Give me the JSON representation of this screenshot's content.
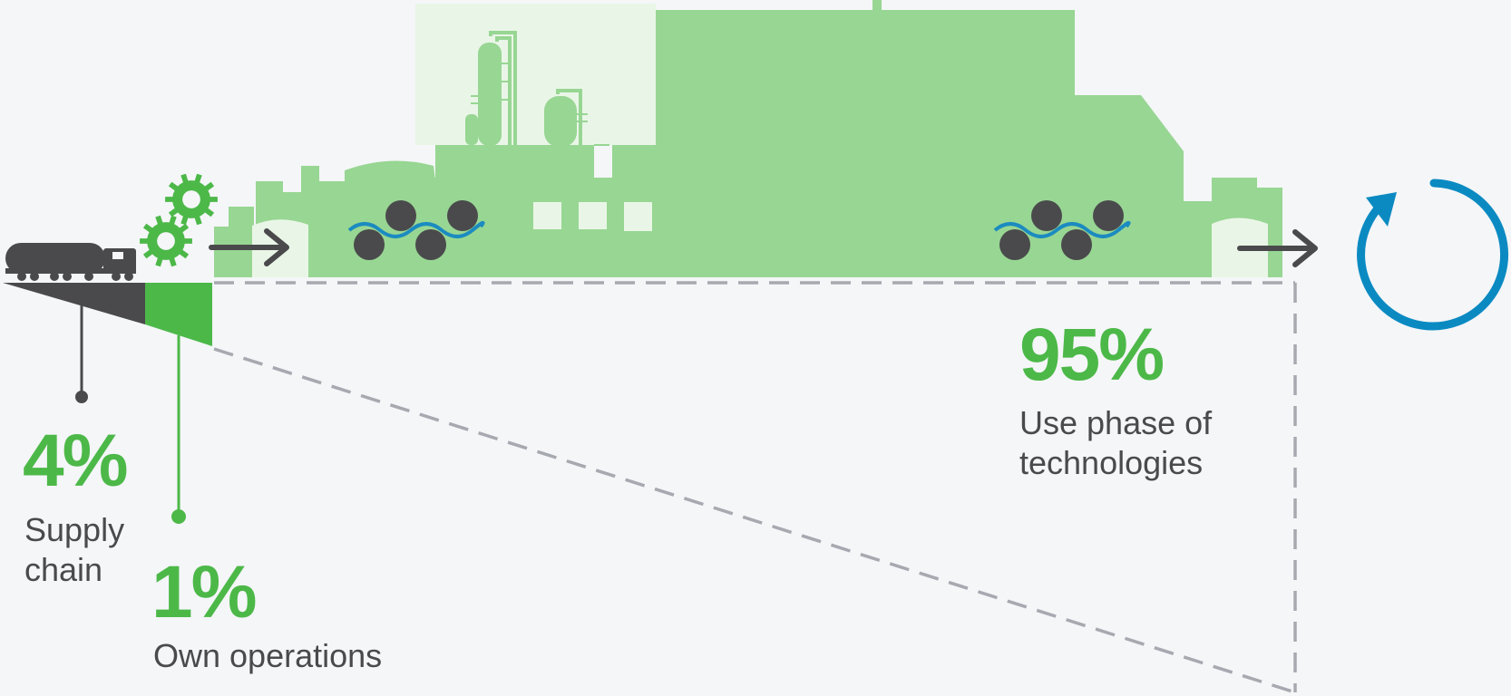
{
  "colors": {
    "factory_green": "#98d693",
    "factory_light": "#e9f6e7",
    "accent_green": "#4cb848",
    "dark_gray": "#4a4a4c",
    "dash_gray": "#a7a9b0",
    "wave_blue": "#1b8bc0",
    "cycle_blue": "#0b8ac2",
    "background": "#f4f6f8"
  },
  "icons": [
    "tanker-truck-icon",
    "gear-icon",
    "arrow-right-icon",
    "wave-circles-icon",
    "cycle-arrow-icon",
    "factory-silhouette",
    "refinery-tower-icon"
  ],
  "stages": [
    {
      "key": "supply",
      "share_percent": 4,
      "value_text": "4%",
      "label_lines": [
        "Supply",
        "chain"
      ]
    },
    {
      "key": "own",
      "share_percent": 1,
      "value_text": "1%",
      "label_lines": [
        "Own operations"
      ]
    },
    {
      "key": "use",
      "share_percent": 95,
      "value_text": "95%",
      "label_lines": [
        "Use phase of",
        "technologies"
      ]
    }
  ]
}
